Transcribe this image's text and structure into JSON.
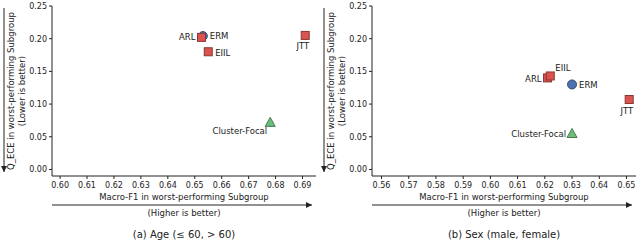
{
  "chart_data": [
    {
      "type": "scatter",
      "title": "(a) Age (≤ 60, > 60)",
      "xlabel": "Macro-F1 in worst-performing Subgroup",
      "xlabel_note": "(Higher is better)",
      "ylabel": "Q_ECE in worst-performing Subgroup",
      "ylabel_note": "(Lower is better)",
      "xlim": [
        0.597,
        0.695
      ],
      "ylim": [
        -0.01,
        0.25
      ],
      "xticks": [
        {
          "value": 0.6,
          "label": "0.60"
        },
        0.61,
        0.62,
        0.63,
        0.64,
        0.65,
        0.66,
        0.67,
        0.68,
        0.69
      ],
      "yticks": [
        {
          "value": 0,
          "label": "0.00"
        },
        0.05,
        {
          "value": 0.1,
          "label": "0.10"
        },
        0.15,
        {
          "value": 0.2,
          "label": "0.20"
        },
        0.25
      ],
      "grid": false,
      "series": [
        {
          "name": "ERM",
          "color": "#4c72b0",
          "marker": "circle",
          "x": [
            0.653
          ],
          "values": [
            0.204
          ]
        },
        {
          "name": "ARL",
          "color": "#d9534f",
          "marker": "square",
          "x": [
            0.6525
          ],
          "values": [
            0.202
          ]
        },
        {
          "name": "EIIL",
          "color": "#d9534f",
          "marker": "square",
          "x": [
            0.655
          ],
          "values": [
            0.18
          ]
        },
        {
          "name": "JTT",
          "color": "#d9534f",
          "marker": "square",
          "x": [
            0.691
          ],
          "values": [
            0.205
          ]
        },
        {
          "name": "Cluster-Focal",
          "color": "#6dbd7a",
          "marker": "triangle",
          "x": [
            0.678
          ],
          "values": [
            0.072
          ]
        }
      ]
    },
    {
      "type": "scatter",
      "title": "(b) Sex (male, female)",
      "xlabel": "Macro-F1 in worst-performing Subgroup",
      "xlabel_note": "(Higher is better)",
      "ylabel": "Q_ECE in worst-performing Subgroup",
      "ylabel_note": "(Lower is better)",
      "xlim": [
        0.5565,
        0.6535
      ],
      "ylim": [
        -0.01,
        0.25
      ],
      "xticks": [
        0.56,
        0.57,
        0.58,
        0.59,
        {
          "value": 0.6,
          "label": "0.60"
        },
        0.61,
        0.62,
        0.63,
        0.64,
        0.65
      ],
      "yticks": [
        {
          "value": 0,
          "label": "0.00"
        },
        0.05,
        {
          "value": 0.1,
          "label": "0.10"
        },
        0.15,
        {
          "value": 0.2,
          "label": "0.20"
        },
        0.25
      ],
      "grid": false,
      "series": [
        {
          "name": "ERM",
          "color": "#4c72b0",
          "marker": "circle",
          "x": [
            0.63
          ],
          "values": [
            0.13
          ]
        },
        {
          "name": "ARL",
          "color": "#d9534f",
          "marker": "square",
          "x": [
            0.621
          ],
          "values": [
            0.14
          ]
        },
        {
          "name": "EIIL",
          "color": "#d9534f",
          "marker": "square",
          "x": [
            0.622
          ],
          "values": [
            0.143
          ]
        },
        {
          "name": "JTT",
          "color": "#d9534f",
          "marker": "square",
          "x": [
            0.651
          ],
          "values": [
            0.107
          ]
        },
        {
          "name": "Cluster-Focal",
          "color": "#6dbd7a",
          "marker": "triangle",
          "x": [
            0.63
          ],
          "values": [
            0.055
          ]
        }
      ]
    }
  ]
}
